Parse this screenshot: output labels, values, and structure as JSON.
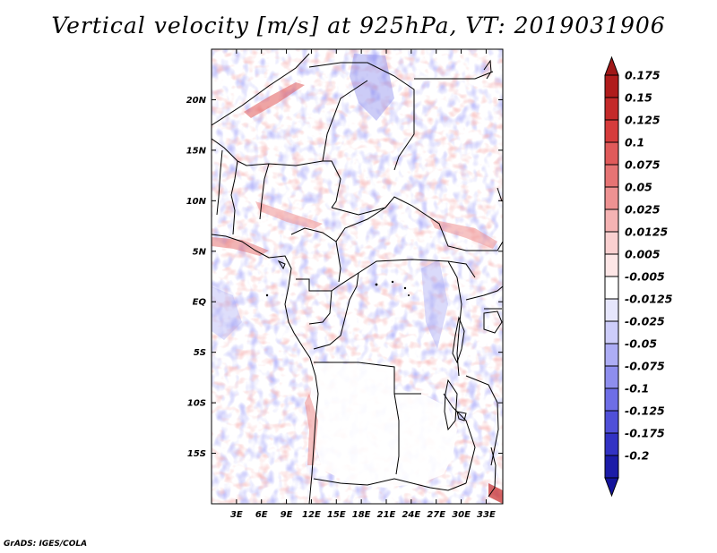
{
  "title": "Vertical velocity [m/s] at 925hPa, VT: 2019031906",
  "credit": "GrADS: IGES/COLA",
  "map": {
    "lon_range": [
      0,
      35
    ],
    "lat_range": [
      -20,
      25
    ],
    "lat_ticks": [
      {
        "value": 20,
        "label": "20N"
      },
      {
        "value": 15,
        "label": "15N"
      },
      {
        "value": 10,
        "label": "10N"
      },
      {
        "value": 5,
        "label": "5N"
      },
      {
        "value": 0,
        "label": "EQ"
      },
      {
        "value": -5,
        "label": "5S"
      },
      {
        "value": -10,
        "label": "10S"
      },
      {
        "value": -15,
        "label": "15S"
      }
    ],
    "lon_ticks": [
      {
        "value": 3,
        "label": "3E"
      },
      {
        "value": 6,
        "label": "6E"
      },
      {
        "value": 9,
        "label": "9E"
      },
      {
        "value": 12,
        "label": "12E"
      },
      {
        "value": 15,
        "label": "15E"
      },
      {
        "value": 18,
        "label": "18E"
      },
      {
        "value": 21,
        "label": "21E"
      },
      {
        "value": 24,
        "label": "24E"
      },
      {
        "value": 27,
        "label": "27E"
      },
      {
        "value": 30,
        "label": "30E"
      },
      {
        "value": 33,
        "label": "33E"
      }
    ]
  },
  "colorbar": {
    "levels": [
      {
        "label": "0.175",
        "color": "#b01c1c"
      },
      {
        "label": "0.15",
        "color": "#c42a2a"
      },
      {
        "label": "0.125",
        "color": "#d63c3c"
      },
      {
        "label": "0.1",
        "color": "#e05a5a"
      },
      {
        "label": "0.075",
        "color": "#e67474"
      },
      {
        "label": "0.05",
        "color": "#ee9292"
      },
      {
        "label": "0.025",
        "color": "#f5b3b3"
      },
      {
        "label": "0.0125",
        "color": "#fad0d0"
      },
      {
        "label": "0.005",
        "color": "#fde6e6"
      },
      {
        "label": "-0.005",
        "color": "#ffffff"
      },
      {
        "label": "-0.0125",
        "color": "#e6e6fc"
      },
      {
        "label": "-0.025",
        "color": "#cdcdfa"
      },
      {
        "label": "-0.05",
        "color": "#adadf5"
      },
      {
        "label": "-0.075",
        "color": "#8e8eee"
      },
      {
        "label": "-0.1",
        "color": "#6e6ee6"
      },
      {
        "label": "-0.125",
        "color": "#5050d8"
      },
      {
        "label": "-0.175",
        "color": "#3232c4"
      },
      {
        "label": "-0.2",
        "color": "#1c1ca8"
      }
    ],
    "top_extend_color": "#a01818",
    "bottom_extend_color": "#14149c"
  }
}
